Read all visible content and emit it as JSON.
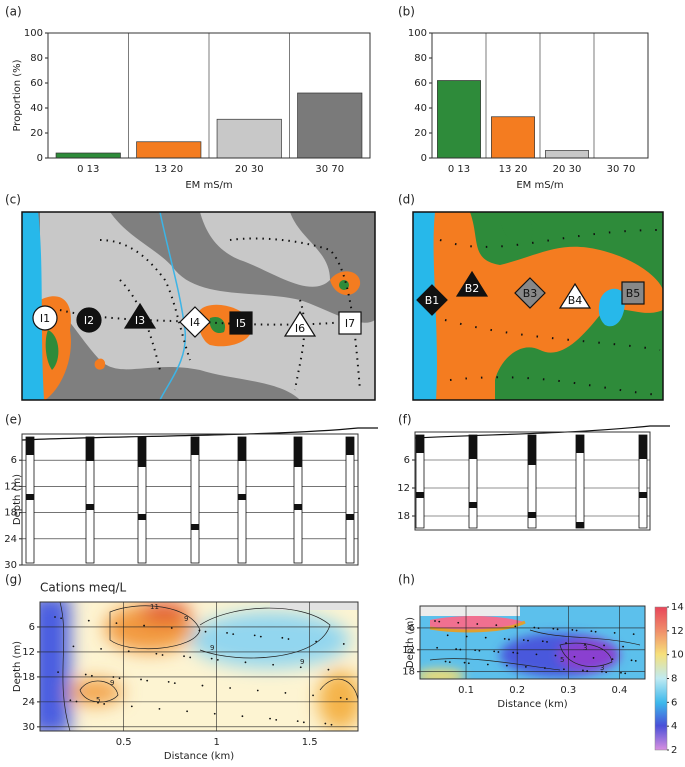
{
  "chart_data": [
    {
      "type": "bar",
      "panel": "(a)",
      "ylabel": "Proportion (%)",
      "xlabel": "EM  mS/m",
      "categories": [
        "0  13",
        "13  20",
        "20  30",
        "30  70"
      ],
      "values": [
        4,
        13,
        31,
        52
      ],
      "colors": [
        "#2e8b3a",
        "#f47c20",
        "#c8c8c8",
        "#7a7a7a"
      ],
      "ylim": [
        0,
        100
      ],
      "yticks": [
        0,
        20,
        40,
        60,
        80,
        100
      ]
    },
    {
      "type": "bar",
      "panel": "(b)",
      "xlabel": "EM  mS/m",
      "categories": [
        "0  13",
        "13  20",
        "20  30",
        "30  70"
      ],
      "values": [
        62,
        33,
        6,
        0
      ],
      "colors": [
        "#2e8b3a",
        "#f47c20",
        "#c8c8c8",
        "#7a7a7a"
      ],
      "ylim": [
        0,
        100
      ],
      "yticks": [
        0,
        20,
        40,
        60,
        80,
        100
      ]
    },
    {
      "type": "log",
      "panel": "(e)",
      "ylabel": "Depth (m)",
      "ylim": [
        0,
        30
      ],
      "yticks": [
        6,
        12,
        18,
        24,
        30
      ],
      "y_inverted": true,
      "grid": true
    },
    {
      "type": "log",
      "panel": "(f)",
      "ylim": [
        0,
        21
      ],
      "yticks": [
        6,
        12,
        18
      ],
      "y_inverted": true,
      "grid": true
    },
    {
      "type": "contour",
      "panel": "(g)",
      "title": "Cations meq/L",
      "ylabel": "Depth (m)",
      "xlabel": "Distance (km)",
      "xlim": [
        0.05,
        1.76
      ],
      "xticks": [
        0.5,
        1,
        1.5
      ],
      "ylim": [
        0,
        31
      ],
      "yticks": [
        6,
        12,
        18,
        24,
        30
      ],
      "y_inverted": true,
      "grid": true,
      "annotations": [
        "11",
        "9",
        "9",
        "9",
        "9",
        "5"
      ]
    },
    {
      "type": "contour",
      "panel": "(h)",
      "ylabel": "Depth (m)",
      "xlabel": "Distance (km)",
      "xlim": [
        0.01,
        0.45
      ],
      "xticks": [
        0.1,
        0.2,
        0.3,
        0.4
      ],
      "ylim": [
        0,
        20
      ],
      "yticks": [
        6,
        12,
        18
      ],
      "y_inverted": true,
      "grid": true,
      "annotations": [
        "5",
        "3",
        "3"
      ],
      "colorbar": {
        "lim": [
          2,
          14
        ],
        "ticks": [
          2,
          4,
          6,
          8,
          10,
          12,
          14
        ]
      }
    }
  ],
  "maps": [
    {
      "panel": "(c)",
      "sites": [
        "I1",
        "I2",
        "I3",
        "I4",
        "I5",
        "I6",
        "I7"
      ]
    },
    {
      "panel": "(d)",
      "sites": [
        "B1",
        "B2",
        "B3",
        "B4",
        "B5"
      ]
    }
  ]
}
